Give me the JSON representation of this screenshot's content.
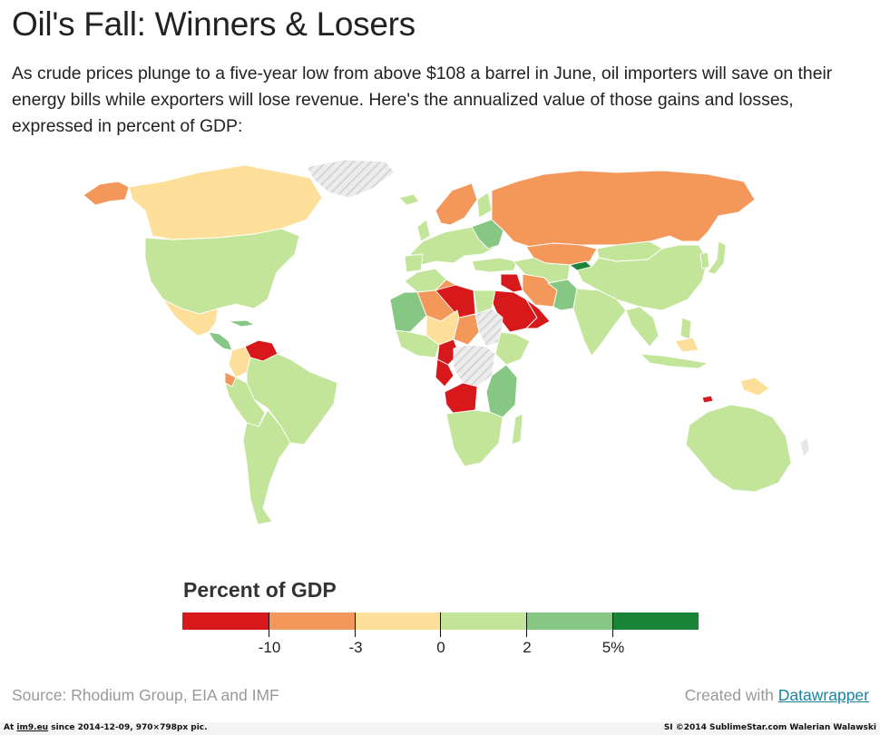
{
  "title": "Oil's Fall: Winners & Losers",
  "intro": "As crude prices plunge to a five-year low from above $108 a barrel in June, oil importers will save on their energy bills while exporters will lose revenue. Here's the annualized value of those gains and losses, expressed in percent of GDP:",
  "colors": {
    "below_-10": "#d7191c",
    "-10_to_-3": "#f4975a",
    "-3_to_0": "#fddf9a",
    "0_to_2": "#c2e59a",
    "2_to_5": "#86c783",
    "above_5": "#1a8539",
    "no_data": "#e6e6e6"
  },
  "legend": {
    "title": "Percent of GDP",
    "breaks": [
      "-10",
      "-3",
      "0",
      "2",
      "5%"
    ],
    "bins": [
      "#d7191c",
      "#f4975a",
      "#fddf9a",
      "#c2e59a",
      "#86c783",
      "#1a8539"
    ]
  },
  "source": "Source: Rhodium Group, EIA and IMF",
  "credit_prefix": "Created with",
  "credit_link": "Datawrapper",
  "footer": {
    "left_prefix": "At",
    "left_link": "im9.eu",
    "left_suffix": "since 2014-12-09, 970×798px pic.",
    "right": "SI ©2014 SublimeStar.com Walerian Walawski"
  }
}
